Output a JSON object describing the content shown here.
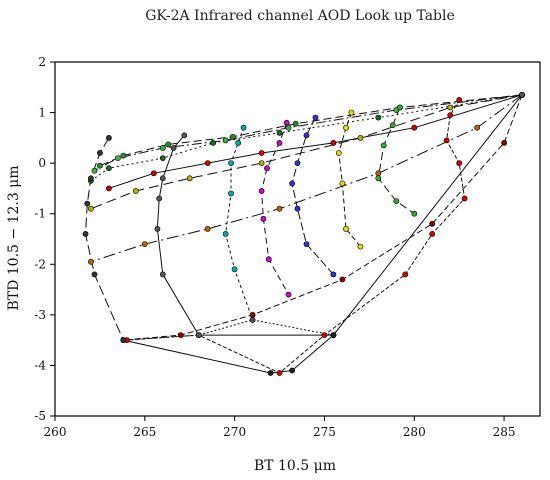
{
  "chart_data": {
    "type": "line",
    "title": "GK-2A Infrared channel AOD Look up Table",
    "xlabel": "BT 10.5 μm",
    "ylabel": "BTD 10.5 − 12.3 μm",
    "xlim": [
      260,
      287
    ],
    "ylim": [
      -5,
      2
    ],
    "xticks": [
      "260",
      "265",
      "270",
      "275",
      "280",
      "285"
    ],
    "yticks": [
      "-5",
      "-4",
      "-3",
      "-2",
      "-1",
      "0",
      "1",
      "2"
    ],
    "grid": false,
    "legend": "none",
    "series": [
      {
        "color": "#2e8b2e",
        "dash": "8,4",
        "points": [
          [
            286.0,
            1.35
          ],
          [
            279.2,
            1.1
          ],
          [
            273.4,
            0.78
          ],
          [
            269.9,
            0.52
          ],
          [
            266.3,
            0.37
          ],
          [
            263.8,
            0.15
          ],
          [
            262.5,
            -0.05
          ]
        ]
      },
      {
        "color": "#3cb43c",
        "dash": "10,3,2,3",
        "points": [
          [
            286.0,
            1.35
          ],
          [
            279.0,
            1.05
          ],
          [
            273.0,
            0.7
          ],
          [
            269.5,
            0.45
          ],
          [
            266.0,
            0.3
          ],
          [
            263.5,
            0.1
          ],
          [
            262.2,
            -0.15
          ]
        ]
      },
      {
        "color": "#1a6b1a",
        "dash": "2,3",
        "points": [
          [
            286.0,
            1.35
          ],
          [
            278.0,
            0.9
          ],
          [
            272.5,
            0.6
          ],
          [
            268.8,
            0.4
          ],
          [
            266.0,
            0.1
          ],
          [
            263.0,
            -0.1
          ],
          [
            262.0,
            -0.35
          ]
        ]
      },
      {
        "color": "#b0b000",
        "dash": "10,5",
        "points": [
          [
            286.0,
            1.35
          ],
          [
            282.0,
            1.1
          ],
          [
            277.0,
            0.5
          ],
          [
            271.5,
            0.0
          ],
          [
            267.5,
            -0.3
          ],
          [
            264.5,
            -0.55
          ],
          [
            262.0,
            -0.9
          ]
        ]
      },
      {
        "color": "#c06000",
        "dash": "12,4,2,4",
        "points": [
          [
            286.0,
            1.35
          ],
          [
            283.5,
            0.7
          ],
          [
            278.0,
            -0.2
          ],
          [
            272.5,
            -0.9
          ],
          [
            268.5,
            -1.3
          ],
          [
            265.0,
            -1.6
          ],
          [
            262.0,
            -1.95
          ]
        ]
      },
      {
        "color": "#8b0000",
        "dash": "6,3",
        "points": [
          [
            286.0,
            1.35
          ],
          [
            285.0,
            0.4
          ],
          [
            281.0,
            -1.2
          ],
          [
            276.0,
            -2.3
          ],
          [
            271.0,
            -3.0
          ],
          [
            267.0,
            -3.4
          ],
          [
            263.8,
            -3.5
          ]
        ]
      },
      {
        "color": "#cc0000",
        "dash": "",
        "points": [
          [
            286.0,
            1.35
          ],
          [
            280.0,
            0.7
          ],
          [
            275.5,
            0.4
          ],
          [
            271.5,
            0.2
          ],
          [
            268.5,
            0.0
          ],
          [
            265.5,
            -0.2
          ],
          [
            263.0,
            -0.5
          ]
        ]
      },
      {
        "color": "#d00000",
        "dash": "4,2",
        "points": [
          [
            282.5,
            1.25
          ],
          [
            282.0,
            0.95
          ],
          [
            281.8,
            0.45
          ],
          [
            282.5,
            0.0
          ],
          [
            282.8,
            -0.7
          ],
          [
            281.0,
            -1.4
          ],
          [
            279.5,
            -2.2
          ],
          [
            275.0,
            -3.4
          ],
          [
            272.5,
            -4.15
          ],
          [
            268.0,
            -3.4
          ],
          [
            264.0,
            -3.5
          ]
        ]
      },
      {
        "color": "#00aaaa",
        "dash": "3,3",
        "points": [
          [
            270.5,
            0.7
          ],
          [
            270.2,
            0.4
          ],
          [
            269.8,
            0.0
          ],
          [
            269.8,
            -0.6
          ],
          [
            269.5,
            -1.4
          ],
          [
            270.0,
            -2.1
          ],
          [
            271.0,
            -3.1
          ]
        ]
      },
      {
        "color": "#cc00cc",
        "dash": "6,4",
        "points": [
          [
            272.9,
            0.8
          ],
          [
            272.5,
            0.4
          ],
          [
            271.8,
            -0.1
          ],
          [
            271.5,
            -0.55
          ],
          [
            271.6,
            -1.1
          ],
          [
            271.9,
            -1.9
          ],
          [
            273.0,
            -2.6
          ]
        ]
      },
      {
        "color": "#3333cc",
        "dash": "8,3",
        "points": [
          [
            274.5,
            0.9
          ],
          [
            274.0,
            0.55
          ],
          [
            273.5,
            0.0
          ],
          [
            273.2,
            -0.4
          ],
          [
            273.5,
            -0.9
          ],
          [
            274.0,
            -1.6
          ],
          [
            275.5,
            -2.2
          ]
        ]
      },
      {
        "color": "#dddd00",
        "dash": "5,3",
        "points": [
          [
            276.5,
            1.0
          ],
          [
            276.2,
            0.7
          ],
          [
            275.8,
            0.2
          ],
          [
            276.0,
            -0.4
          ],
          [
            276.2,
            -1.3
          ],
          [
            277.0,
            -1.65
          ]
        ]
      },
      {
        "color": "#33aa33",
        "dash": "8,4",
        "points": [
          [
            279.2,
            1.1
          ],
          [
            278.8,
            0.75
          ],
          [
            278.3,
            0.35
          ],
          [
            278.0,
            -0.3
          ],
          [
            279.0,
            -0.75
          ],
          [
            280.0,
            -1.0
          ]
        ]
      },
      {
        "color": "#555555",
        "dash": "",
        "points": [
          [
            267.2,
            0.55
          ],
          [
            266.6,
            0.3
          ],
          [
            266.0,
            -0.3
          ],
          [
            265.8,
            -0.7
          ],
          [
            265.7,
            -1.3
          ],
          [
            266.0,
            -2.2
          ],
          [
            268.0,
            -3.4
          ],
          [
            275.5,
            -3.4
          ],
          [
            286.0,
            1.35
          ]
        ]
      },
      {
        "color": "#555555",
        "dash": "2,2",
        "points": [
          [
            263.8,
            -3.5
          ],
          [
            268.0,
            -3.4
          ],
          [
            271.0,
            -3.1
          ],
          [
            275.5,
            -3.4
          ]
        ]
      },
      {
        "color": "#222222",
        "dash": "",
        "points": [
          [
            263.8,
            -3.5
          ],
          [
            272.0,
            -4.15
          ],
          [
            273.2,
            -4.1
          ],
          [
            275.5,
            -3.4
          ]
        ]
      },
      {
        "color": "#333333",
        "dash": "10,4",
        "points": [
          [
            263.0,
            0.5
          ],
          [
            262.5,
            0.2
          ],
          [
            262.0,
            -0.3
          ],
          [
            261.8,
            -0.8
          ],
          [
            261.7,
            -1.4
          ],
          [
            262.2,
            -2.2
          ],
          [
            263.8,
            -3.5
          ]
        ]
      }
    ]
  }
}
